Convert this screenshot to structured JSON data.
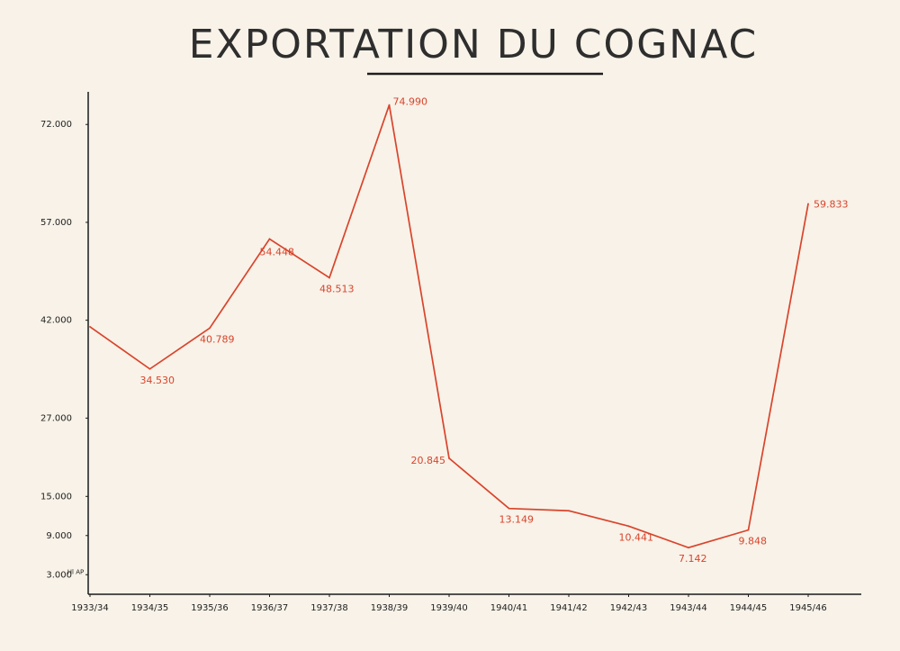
{
  "chart_data": {
    "type": "line",
    "title": "EXPORTATION DU COGNAC",
    "ylabel_unit": "Hl AP",
    "categories": [
      "1933/34",
      "1934/35",
      "1935/36",
      "1936/37",
      "1937/38",
      "1938/39",
      "1939/40",
      "1940/41",
      "1941/42",
      "1942/43",
      "1943/44",
      "1944/45",
      "1945/46"
    ],
    "y_ticks": [
      {
        "value": 72000,
        "label": "72.000"
      },
      {
        "value": 57000,
        "label": "57.000"
      },
      {
        "value": 42000,
        "label": "42.000"
      },
      {
        "value": 27000,
        "label": "27.000"
      },
      {
        "value": 15000,
        "label": "15.000"
      },
      {
        "value": 9000,
        "label": "9.000"
      },
      {
        "value": 3000,
        "label": "3.000"
      }
    ],
    "ylim": [
      0,
      77000
    ],
    "series": [
      {
        "color": "#d9442c",
        "points": [
          {
            "x": "1933/34",
            "value": 41000,
            "label": ""
          },
          {
            "x": "1934/35",
            "value": 34530,
            "label": "34.530"
          },
          {
            "x": "1935/36",
            "value": 40789,
            "label": "40.789"
          },
          {
            "x": "1936/37",
            "value": 54448,
            "label": "54.448"
          },
          {
            "x": "1937/38",
            "value": 48513,
            "label": "48.513"
          },
          {
            "x": "1938/39",
            "value": 74990,
            "label": "74.990"
          },
          {
            "x": "1939/40",
            "value": 20845,
            "label": "20.845"
          },
          {
            "x": "1940/41",
            "value": 13149,
            "label": "13.149"
          },
          {
            "x": "1941/42",
            "value": 12800,
            "label": ""
          },
          {
            "x": "1942/43",
            "value": 10441,
            "label": "10.441"
          },
          {
            "x": "1943/44",
            "value": 7142,
            "label": "7.142"
          },
          {
            "x": "1944/45",
            "value": 9848,
            "label": "9.848"
          },
          {
            "x": "1945/46",
            "value": 59833,
            "label": "59.833"
          }
        ]
      }
    ],
    "grid": false,
    "legend": "none"
  }
}
